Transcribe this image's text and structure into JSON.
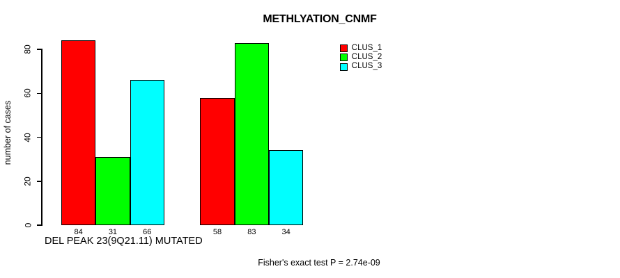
{
  "chart_data": {
    "type": "bar",
    "title": "METHLYATION_CNMF",
    "ylabel": "number of cases",
    "xlabel": "DEL PEAK 23(9Q21.11) MUTATED",
    "footnote": "Fisher's exact test P = 2.74e-09",
    "categories": [
      "",
      ""
    ],
    "series": [
      {
        "name": "CLUS_1",
        "color": "#ff0000",
        "values": [
          84,
          58
        ]
      },
      {
        "name": "CLUS_2",
        "color": "#00ff00",
        "values": [
          31,
          83
        ]
      },
      {
        "name": "CLUS_3",
        "color": "#00ffff",
        "values": [
          66,
          34
        ]
      }
    ],
    "bar_value_labels": [
      [
        84,
        31,
        66
      ],
      [
        58,
        83,
        34
      ]
    ],
    "yticks": [
      0,
      20,
      40,
      60,
      80
    ],
    "ylim": [
      0,
      84
    ],
    "grid": false,
    "legend_position": "top-right",
    "bar_border_color": "#000000",
    "axis_color": "#000000",
    "background": "#ffffff"
  }
}
